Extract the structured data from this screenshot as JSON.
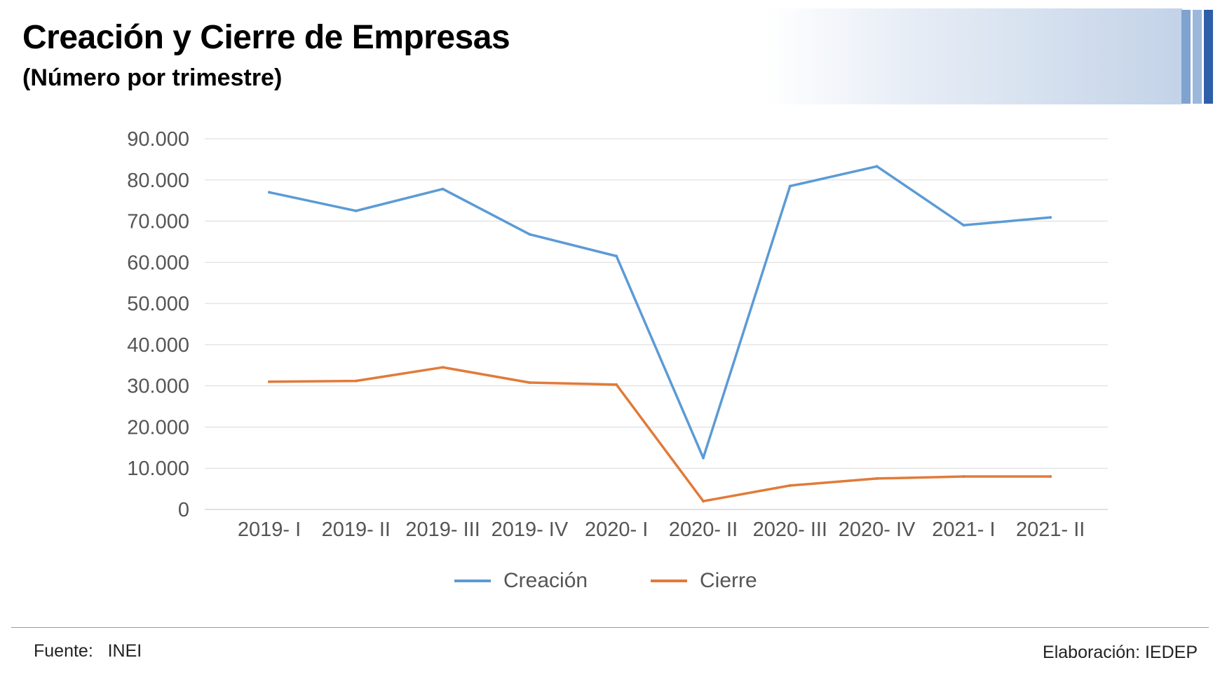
{
  "header": {
    "title": "Creación y Cierre de Empresas",
    "subtitle": "(Número por trimestre)"
  },
  "colors": {
    "creacion": "#5b9bd5",
    "cierre": "#e07b39",
    "grid": "#d9d9d9",
    "axis_text": "#555555",
    "banner_stripes": [
      "#7fa3cf",
      "#9bb7da",
      "#2f5ea8"
    ]
  },
  "chart_data": {
    "type": "line",
    "title": "Creación y Cierre de Empresas",
    "subtitle": "(Número por trimestre)",
    "xlabel": "",
    "ylabel": "",
    "categories": [
      "2019- I",
      "2019- II",
      "2019- III",
      "2019- IV",
      "2020- I",
      "2020- II",
      "2020- III",
      "2020- IV",
      "2021- I",
      "2021- II"
    ],
    "yticks": [
      "0",
      "10.000",
      "20.000",
      "30.000",
      "40.000",
      "50.000",
      "60.000",
      "70.000",
      "80.000",
      "90.000"
    ],
    "ylim": [
      0,
      90000
    ],
    "grid": true,
    "legend_position": "bottom",
    "series": [
      {
        "name": "Creación",
        "values": [
          77000,
          72500,
          77800,
          66800,
          61500,
          12500,
          78500,
          83300,
          69000,
          70900
        ]
      },
      {
        "name": "Cierre",
        "values": [
          31000,
          31200,
          34500,
          30800,
          30300,
          2000,
          5800,
          7500,
          8000,
          8000
        ]
      }
    ]
  },
  "footer": {
    "source": "Fuente:   INEI",
    "credit": "Elaboración: IEDEP"
  }
}
